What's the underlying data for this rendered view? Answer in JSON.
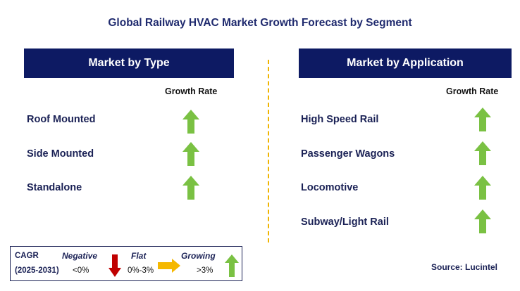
{
  "title": "Global Railway HVAC Market Growth Forecast by Segment",
  "left_panel": {
    "header": "Market by Type",
    "column_header": "Growth Rate",
    "rows": [
      {
        "label": "Roof Mounted",
        "trend": "growing"
      },
      {
        "label": "Side Mounted",
        "trend": "growing"
      },
      {
        "label": "Standalone",
        "trend": "growing"
      }
    ]
  },
  "right_panel": {
    "header": "Market by Application",
    "column_header": "Growth Rate",
    "rows": [
      {
        "label": "High Speed Rail",
        "trend": "growing"
      },
      {
        "label": "Passenger Wagons",
        "trend": "growing"
      },
      {
        "label": "Locomotive",
        "trend": "growing"
      },
      {
        "label": "Subway/Light Rail",
        "trend": "growing"
      }
    ]
  },
  "legend": {
    "cagr_label": "CAGR",
    "period": "(2025-2031)",
    "negative_label": "Negative",
    "negative_range": "<0%",
    "flat_label": "Flat",
    "flat_range": "0%-3%",
    "growing_label": "Growing",
    "growing_range": ">3%"
  },
  "source": "Source: Lucintel",
  "colors": {
    "header_bg": "#0d1a63",
    "growing_arrow": "#7ac143",
    "negative_arrow": "#c00000",
    "flat_arrow": "#f5b800",
    "divider": "#f0b400"
  },
  "icons": {
    "growing": "green-up-arrow-icon",
    "negative": "red-down-arrow-icon",
    "flat": "orange-right-arrow-icon"
  }
}
